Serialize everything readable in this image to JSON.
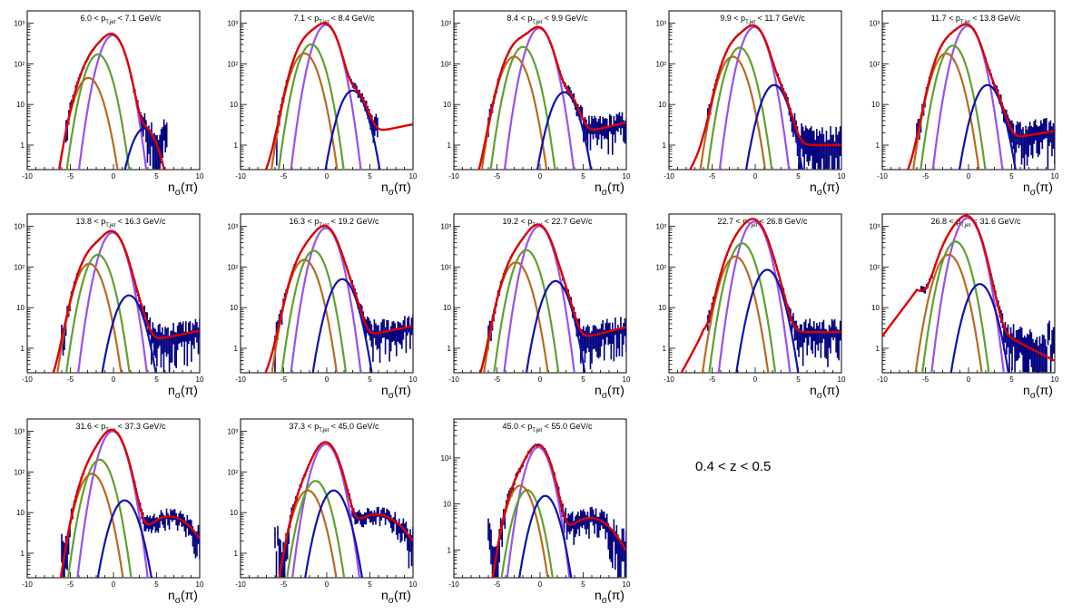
{
  "figure_label": "0.4 < z < 0.5",
  "colors": {
    "data": "#000080",
    "total_fit": "#dd0000",
    "pion": "#9a50f0",
    "kaon": "#5fa030",
    "proton": "#b86a20",
    "electron": "#1010b0"
  },
  "chart_data": [
    {
      "type": "line",
      "title_pre": "6.0 < p",
      "title_sub": "T,jet",
      "title_post": " < 7.1 GeV/c",
      "xlabel_main": "n",
      "xlabel_sub": "σ",
      "xlabel_post": "(π)",
      "xlim": [
        -10,
        10
      ],
      "x_ticks": [
        -10,
        -5,
        0,
        5,
        10
      ],
      "yscale": "log",
      "ylim": [
        0.25,
        2000
      ],
      "y_tick_labels": [
        "1",
        "10",
        "10²",
        "10³"
      ],
      "series": [
        {
          "mu": -0.1,
          "amp": 500,
          "sigma": 1.0
        },
        {
          "mu": -1.8,
          "amp": 170,
          "sigma": 1.0
        },
        {
          "mu": -2.9,
          "amp": 45,
          "sigma": 1.05
        },
        {
          "mu": 3.6,
          "amp": 2.6,
          "sigma": 1.05
        }
      ],
      "background": {
        "a": 0,
        "b": 0
      },
      "data_range": [
        -5.5,
        6.2
      ]
    },
    {
      "type": "line",
      "title_pre": "7.1 < p",
      "title_sub": "T,jet",
      "title_post": " < 8.4 GeV/c",
      "xlabel_main": "n",
      "xlabel_sub": "σ",
      "xlabel_post": "(π)",
      "xlim": [
        -10,
        10
      ],
      "x_ticks": [
        -10,
        -5,
        0,
        5,
        10
      ],
      "yscale": "log",
      "ylim": [
        0.25,
        2000
      ],
      "y_tick_labels": [
        "1",
        "10",
        "10²",
        "10³"
      ],
      "series": [
        {
          "mu": -0.1,
          "amp": 900,
          "sigma": 1.0
        },
        {
          "mu": -1.8,
          "amp": 300,
          "sigma": 1.0
        },
        {
          "mu": -2.6,
          "amp": 180,
          "sigma": 1.05
        },
        {
          "mu": 3.0,
          "amp": 22,
          "sigma": 1.05
        }
      ],
      "background": {
        "a": 1.2,
        "b": 0.1
      },
      "data_range": [
        -5.8,
        6.0
      ]
    },
    {
      "type": "line",
      "title_pre": "8.4 < p",
      "title_sub": "T,jet",
      "title_post": " < 9.9 GeV/c",
      "xlabel_main": "n",
      "xlabel_sub": "σ",
      "xlabel_post": "(π)",
      "xlim": [
        -10,
        10
      ],
      "x_ticks": [
        -10,
        -5,
        0,
        5,
        10
      ],
      "yscale": "log",
      "ylim": [
        0.25,
        2000
      ],
      "y_tick_labels": [
        "1",
        "10",
        "10²",
        "10³"
      ],
      "series": [
        {
          "mu": -0.1,
          "amp": 750,
          "sigma": 1.0
        },
        {
          "mu": -2.0,
          "amp": 260,
          "sigma": 1.0
        },
        {
          "mu": -3.0,
          "amp": 150,
          "sigma": 1.05
        },
        {
          "mu": 2.8,
          "amp": 20,
          "sigma": 1.05
        }
      ],
      "background": {
        "a": 1.1,
        "b": 0.12
      },
      "data_range": [
        -6.0,
        10.0
      ]
    },
    {
      "type": "line",
      "title_pre": "9.9 < p",
      "title_sub": "T,jet",
      "title_post": " < 11.7 GeV/c",
      "xlabel_main": "n",
      "xlabel_sub": "σ",
      "xlabel_post": "(π)",
      "xlim": [
        -10,
        10
      ],
      "x_ticks": [
        -10,
        -5,
        0,
        5,
        10
      ],
      "yscale": "log",
      "ylim": [
        0.25,
        2000
      ],
      "y_tick_labels": [
        "1",
        "10",
        "10²",
        "10³"
      ],
      "series": [
        {
          "mu": -0.1,
          "amp": 800,
          "sigma": 1.0
        },
        {
          "mu": -1.8,
          "amp": 250,
          "sigma": 1.0
        },
        {
          "mu": -2.6,
          "amp": 150,
          "sigma": 1.05
        },
        {
          "mu": 2.2,
          "amp": 30,
          "sigma": 1.05
        }
      ],
      "background": {
        "a": 1.0,
        "b": 0.0
      },
      "data_range": [
        -5.5,
        10.0
      ]
    },
    {
      "type": "line",
      "title_pre": "11.7 < p",
      "title_sub": "T,jet",
      "title_post": " < 13.8 GeV/c",
      "xlabel_main": "n",
      "xlabel_sub": "σ",
      "xlabel_post": "(π)",
      "xlim": [
        -10,
        10
      ],
      "x_ticks": [
        -10,
        -5,
        0,
        5,
        10
      ],
      "yscale": "log",
      "ylim": [
        0.25,
        2000
      ],
      "y_tick_labels": [
        "1",
        "10",
        "10²",
        "10³"
      ],
      "series": [
        {
          "mu": -0.1,
          "amp": 850,
          "sigma": 1.0
        },
        {
          "mu": -1.8,
          "amp": 280,
          "sigma": 1.0
        },
        {
          "mu": -2.6,
          "amp": 180,
          "sigma": 1.05
        },
        {
          "mu": 2.2,
          "amp": 30,
          "sigma": 1.05
        }
      ],
      "background": {
        "a": 1.0,
        "b": 0.08
      },
      "data_range": [
        -6.0,
        10.0
      ]
    },
    {
      "type": "line",
      "title_pre": "13.8 < p",
      "title_sub": "T,jet",
      "title_post": " < 16.3 GeV/c",
      "xlabel_main": "n",
      "xlabel_sub": "σ",
      "xlabel_post": "(π)",
      "xlim": [
        -10,
        10
      ],
      "x_ticks": [
        -10,
        -5,
        0,
        5,
        10
      ],
      "yscale": "log",
      "ylim": [
        0.25,
        2000
      ],
      "y_tick_labels": [
        "1",
        "10",
        "10²",
        "10³"
      ],
      "series": [
        {
          "mu": -0.1,
          "amp": 700,
          "sigma": 1.0
        },
        {
          "mu": -1.8,
          "amp": 200,
          "sigma": 1.0
        },
        {
          "mu": -2.8,
          "amp": 120,
          "sigma": 1.05
        },
        {
          "mu": 1.8,
          "amp": 20,
          "sigma": 1.05
        }
      ],
      "background": {
        "a": 1.0,
        "b": 0.1
      },
      "data_range": [
        -6.0,
        10.0
      ]
    },
    {
      "type": "line",
      "title_pre": "16.3 < p",
      "title_sub": "T,jet",
      "title_post": " < 19.2 GeV/c",
      "xlabel_main": "n",
      "xlabel_sub": "σ",
      "xlabel_post": "(π)",
      "xlim": [
        -10,
        10
      ],
      "x_ticks": [
        -10,
        -5,
        0,
        5,
        10
      ],
      "yscale": "log",
      "ylim": [
        0.25,
        2000
      ],
      "y_tick_labels": [
        "1",
        "10",
        "10²",
        "10³"
      ],
      "series": [
        {
          "mu": -0.1,
          "amp": 900,
          "sigma": 1.0
        },
        {
          "mu": -1.5,
          "amp": 250,
          "sigma": 1.0
        },
        {
          "mu": -2.6,
          "amp": 150,
          "sigma": 1.05
        },
        {
          "mu": 1.8,
          "amp": 50,
          "sigma": 1.05
        }
      ],
      "background": {
        "a": 1.3,
        "b": 0.1
      },
      "data_range": [
        -6.0,
        10.0
      ]
    },
    {
      "type": "line",
      "title_pre": "19.2 < p",
      "title_sub": "T,jet",
      "title_post": " < 22.7 GeV/c",
      "xlabel_main": "n",
      "xlabel_sub": "σ",
      "xlabel_post": "(π)",
      "xlim": [
        -10,
        10
      ],
      "x_ticks": [
        -10,
        -5,
        0,
        5,
        10
      ],
      "yscale": "log",
      "ylim": [
        0.25,
        2000
      ],
      "y_tick_labels": [
        "1",
        "10",
        "10²",
        "10³"
      ],
      "series": [
        {
          "mu": -0.1,
          "amp": 1000,
          "sigma": 1.0
        },
        {
          "mu": -1.6,
          "amp": 260,
          "sigma": 1.0
        },
        {
          "mu": -2.8,
          "amp": 130,
          "sigma": 1.05
        },
        {
          "mu": 1.8,
          "amp": 45,
          "sigma": 1.05
        }
      ],
      "background": {
        "a": 1.0,
        "b": 0.12
      },
      "data_range": [
        -6.0,
        10.0
      ]
    },
    {
      "type": "line",
      "title_pre": "22.7 < p",
      "title_sub": "T,jet",
      "title_post": " < 26.8 GeV/c",
      "xlabel_main": "n",
      "xlabel_sub": "σ",
      "xlabel_post": "(π)",
      "xlim": [
        -10,
        10
      ],
      "x_ticks": [
        -10,
        -5,
        0,
        5,
        10
      ],
      "yscale": "log",
      "ylim": [
        0.25,
        2000
      ],
      "y_tick_labels": [
        "1",
        "10",
        "10²",
        "10³"
      ],
      "series": [
        {
          "mu": -0.1,
          "amp": 1300,
          "sigma": 1.0
        },
        {
          "mu": -1.5,
          "amp": 380,
          "sigma": 1.0
        },
        {
          "mu": -2.3,
          "amp": 180,
          "sigma": 1.05
        },
        {
          "mu": 1.4,
          "amp": 85,
          "sigma": 1.05
        }
      ],
      "background": {
        "a": 2.5,
        "b": 0.0
      },
      "data_range": [
        -5.5,
        10.0
      ]
    },
    {
      "type": "line",
      "title_pre": "26.8 < p",
      "title_sub": "T,jet",
      "title_post": " < 31.6 GeV/c",
      "xlabel_main": "n",
      "xlabel_sub": "σ",
      "xlabel_post": "(π)",
      "xlim": [
        -10,
        10
      ],
      "x_ticks": [
        -10,
        -5,
        0,
        5,
        10
      ],
      "yscale": "log",
      "ylim": [
        0.25,
        2000
      ],
      "y_tick_labels": [
        "1",
        "10",
        "10²",
        "10³"
      ],
      "series": [
        {
          "mu": -0.1,
          "amp": 1600,
          "sigma": 1.0
        },
        {
          "mu": -1.5,
          "amp": 420,
          "sigma": 1.0
        },
        {
          "mu": -2.3,
          "amp": 200,
          "sigma": 1.05
        },
        {
          "mu": 1.3,
          "amp": 38,
          "sigma": 1.05
        }
      ],
      "background": {
        "a": 6,
        "b": -0.25
      },
      "data_range": [
        -5.5,
        10.0
      ]
    },
    {
      "type": "line",
      "title_pre": "31.6 < p",
      "title_sub": "T,jet",
      "title_post": " < 37.3 GeV/c",
      "xlabel_main": "n",
      "xlabel_sub": "σ",
      "xlabel_post": "(π)",
      "xlim": [
        -10,
        10
      ],
      "x_ticks": [
        -10,
        -5,
        0,
        5,
        10
      ],
      "yscale": "log",
      "ylim": [
        0.25,
        2000
      ],
      "y_tick_labels": [
        "1",
        "10",
        "10²",
        "10³"
      ],
      "series": [
        {
          "mu": -0.1,
          "amp": 1000,
          "sigma": 1.0
        },
        {
          "mu": -1.6,
          "amp": 200,
          "sigma": 1.0
        },
        {
          "mu": -2.5,
          "amp": 90,
          "sigma": 1.05
        },
        {
          "mu": 1.3,
          "amp": 20,
          "sigma": 1.05
        }
      ],
      "background": {
        "gauss": {
          "mu": 6.5,
          "amp": 8,
          "sigma": 2.2
        }
      },
      "data_range": [
        -6.0,
        10.0
      ]
    },
    {
      "type": "line",
      "title_pre": "37.3 < p",
      "title_sub": "T,jet",
      "title_post": " < 45.0 GeV/c",
      "xlabel_main": "n",
      "xlabel_sub": "σ",
      "xlabel_post": "(π)",
      "xlim": [
        -10,
        10
      ],
      "x_ticks": [
        -10,
        -5,
        0,
        5,
        10
      ],
      "yscale": "log",
      "ylim": [
        0.25,
        2000
      ],
      "y_tick_labels": [
        "1",
        "10",
        "10²",
        "10³"
      ],
      "series": [
        {
          "mu": -0.1,
          "amp": 480,
          "sigma": 1.0
        },
        {
          "mu": -1.3,
          "amp": 60,
          "sigma": 1.0
        },
        {
          "mu": -2.2,
          "amp": 35,
          "sigma": 1.05
        },
        {
          "mu": 0.8,
          "amp": 35,
          "sigma": 1.05
        }
      ],
      "background": {
        "gauss": {
          "mu": 5.8,
          "amp": 9,
          "sigma": 2.4
        }
      },
      "data_range": [
        -6.0,
        10.0
      ]
    },
    {
      "type": "line",
      "title_pre": "45.0 < p",
      "title_sub": "T,jet",
      "title_post": " < 55.0 GeV/c",
      "xlabel_main": "n",
      "xlabel_sub": "σ",
      "xlabel_post": "(π)",
      "xlim": [
        -10,
        10
      ],
      "x_ticks": [
        -10,
        -5,
        0,
        5,
        10
      ],
      "yscale": "log",
      "ylim": [
        0.25,
        700
      ],
      "y_tick_labels": [
        "1",
        "10",
        "10²"
      ],
      "series": [
        {
          "mu": -0.2,
          "amp": 170,
          "sigma": 1.0
        },
        {
          "mu": -1.5,
          "amp": 20,
          "sigma": 1.0
        },
        {
          "mu": -2.3,
          "amp": 25,
          "sigma": 1.05
        },
        {
          "mu": 0.6,
          "amp": 15,
          "sigma": 1.05
        }
      ],
      "background": {
        "gauss": {
          "mu": 5.8,
          "amp": 5,
          "sigma": 2.3
        }
      },
      "data_range": [
        -6.0,
        10.0
      ]
    }
  ]
}
